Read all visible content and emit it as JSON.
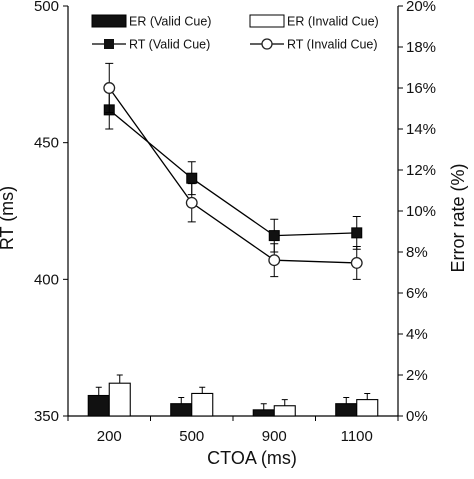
{
  "chart_data": {
    "type": "line+bar",
    "categories": [
      "200",
      "500",
      "900",
      "1100"
    ],
    "xlabel": "CTOA (ms)",
    "ylabel": "RT (ms)",
    "y2label": "Error rate (%)",
    "ylim": [
      350,
      500
    ],
    "yticks": [
      350,
      400,
      450,
      500
    ],
    "y2lim": [
      0,
      20
    ],
    "y2ticks": [
      "0%",
      "2%",
      "4%",
      "6%",
      "8%",
      "10%",
      "12%",
      "14%",
      "16%",
      "18%",
      "20%"
    ],
    "grid": false,
    "legend_position": "top",
    "bar_series": [
      {
        "name": "ER (Valid Cue)",
        "axis": "right",
        "color": "#111111",
        "values": [
          1.0,
          0.6,
          0.3,
          0.6
        ],
        "errors": [
          0.4,
          0.3,
          0.3,
          0.3
        ]
      },
      {
        "name": "ER (Invalid Cue)",
        "axis": "right",
        "color": "#ffffff",
        "values": [
          1.6,
          1.1,
          0.5,
          0.8
        ],
        "errors": [
          0.4,
          0.3,
          0.3,
          0.3
        ]
      }
    ],
    "line_series": [
      {
        "name": "RT (Valid Cue)",
        "axis": "left",
        "marker": "square",
        "values": [
          462,
          437,
          416,
          417
        ],
        "errors": [
          7,
          6,
          6,
          6
        ]
      },
      {
        "name": "RT (Invalid Cue)",
        "axis": "left",
        "marker": "circle-open",
        "values": [
          470,
          428,
          407,
          406
        ],
        "errors": [
          9,
          7,
          6,
          6
        ]
      }
    ]
  }
}
